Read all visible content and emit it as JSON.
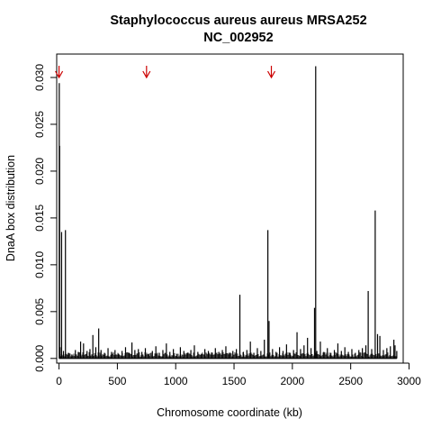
{
  "chart_data": {
    "type": "bar",
    "title_lines": [
      "Staphylococcus aureus aureus MRSA252",
      "NC_002952"
    ],
    "xlabel": "Chromosome coordinate (kb)",
    "ylabel": "DnaA box distribution",
    "xlim": [
      -20,
      2950
    ],
    "ylim": [
      -0.0005,
      0.0325
    ],
    "x_ticks": [
      0,
      500,
      1000,
      1500,
      2000,
      2500,
      3000
    ],
    "x_tick_labels": [
      "0",
      "500",
      "1000",
      "1500",
      "2000",
      "2500",
      "3000"
    ],
    "y_ticks": [
      0.0,
      0.005,
      0.01,
      0.015,
      0.02,
      0.025,
      0.03
    ],
    "y_tick_labels": [
      "0.000",
      "0.005",
      "0.010",
      "0.015",
      "0.020",
      "0.025",
      "0.030"
    ],
    "grid": false,
    "legend": "none",
    "bar_color": "#000000",
    "annotation_color": "#cc0000",
    "arrow_markers_x": [
      0,
      750,
      1820
    ],
    "x": [
      2,
      5,
      9,
      22,
      38,
      55,
      80,
      110,
      140,
      165,
      185,
      210,
      240,
      265,
      290,
      315,
      340,
      360,
      390,
      420,
      450,
      480,
      510,
      540,
      570,
      600,
      625,
      650,
      680,
      710,
      740,
      770,
      800,
      830,
      860,
      890,
      920,
      950,
      980,
      1010,
      1040,
      1070,
      1100,
      1130,
      1160,
      1190,
      1220,
      1250,
      1280,
      1310,
      1340,
      1370,
      1400,
      1430,
      1460,
      1490,
      1520,
      1550,
      1580,
      1610,
      1640,
      1670,
      1700,
      1730,
      1760,
      1790,
      1800,
      1830,
      1860,
      1890,
      1920,
      1950,
      1980,
      2010,
      2040,
      2070,
      2100,
      2130,
      2160,
      2190,
      2200,
      2210,
      2240,
      2270,
      2300,
      2330,
      2360,
      2390,
      2420,
      2450,
      2480,
      2510,
      2540,
      2570,
      2600,
      2630,
      2650,
      2680,
      2710,
      2730,
      2750,
      2780,
      2810,
      2840,
      2870,
      2880,
      2895
    ],
    "values": [
      0.0294,
      0.0227,
      0.0012,
      0.0135,
      0.0008,
      0.0137,
      0.0006,
      0.0004,
      0.0009,
      0.0007,
      0.0018,
      0.0016,
      0.0008,
      0.001,
      0.0025,
      0.0012,
      0.0032,
      0.0009,
      0.0006,
      0.0011,
      0.0007,
      0.0009,
      0.0005,
      0.0008,
      0.0012,
      0.0006,
      0.0017,
      0.0009,
      0.001,
      0.0007,
      0.0011,
      0.0005,
      0.0008,
      0.0013,
      0.0006,
      0.0009,
      0.0016,
      0.0007,
      0.001,
      0.0005,
      0.0012,
      0.0008,
      0.0006,
      0.0009,
      0.0014,
      0.0007,
      0.0005,
      0.001,
      0.0008,
      0.0006,
      0.0011,
      0.0007,
      0.0009,
      0.0013,
      0.0006,
      0.0008,
      0.001,
      0.0068,
      0.0007,
      0.0009,
      0.0018,
      0.0006,
      0.0011,
      0.0008,
      0.002,
      0.0137,
      0.004,
      0.001,
      0.0007,
      0.0012,
      0.0008,
      0.0015,
      0.0006,
      0.0009,
      0.0028,
      0.001,
      0.0014,
      0.0022,
      0.0011,
      0.0054,
      0.0312,
      0.0008,
      0.0018,
      0.0007,
      0.0011,
      0.0006,
      0.0009,
      0.0016,
      0.0008,
      0.0012,
      0.0007,
      0.001,
      0.0006,
      0.0009,
      0.0011,
      0.0014,
      0.0072,
      0.001,
      0.0158,
      0.0026,
      0.0024,
      0.0009,
      0.0011,
      0.0013,
      0.002,
      0.0014,
      0.0008
    ]
  }
}
